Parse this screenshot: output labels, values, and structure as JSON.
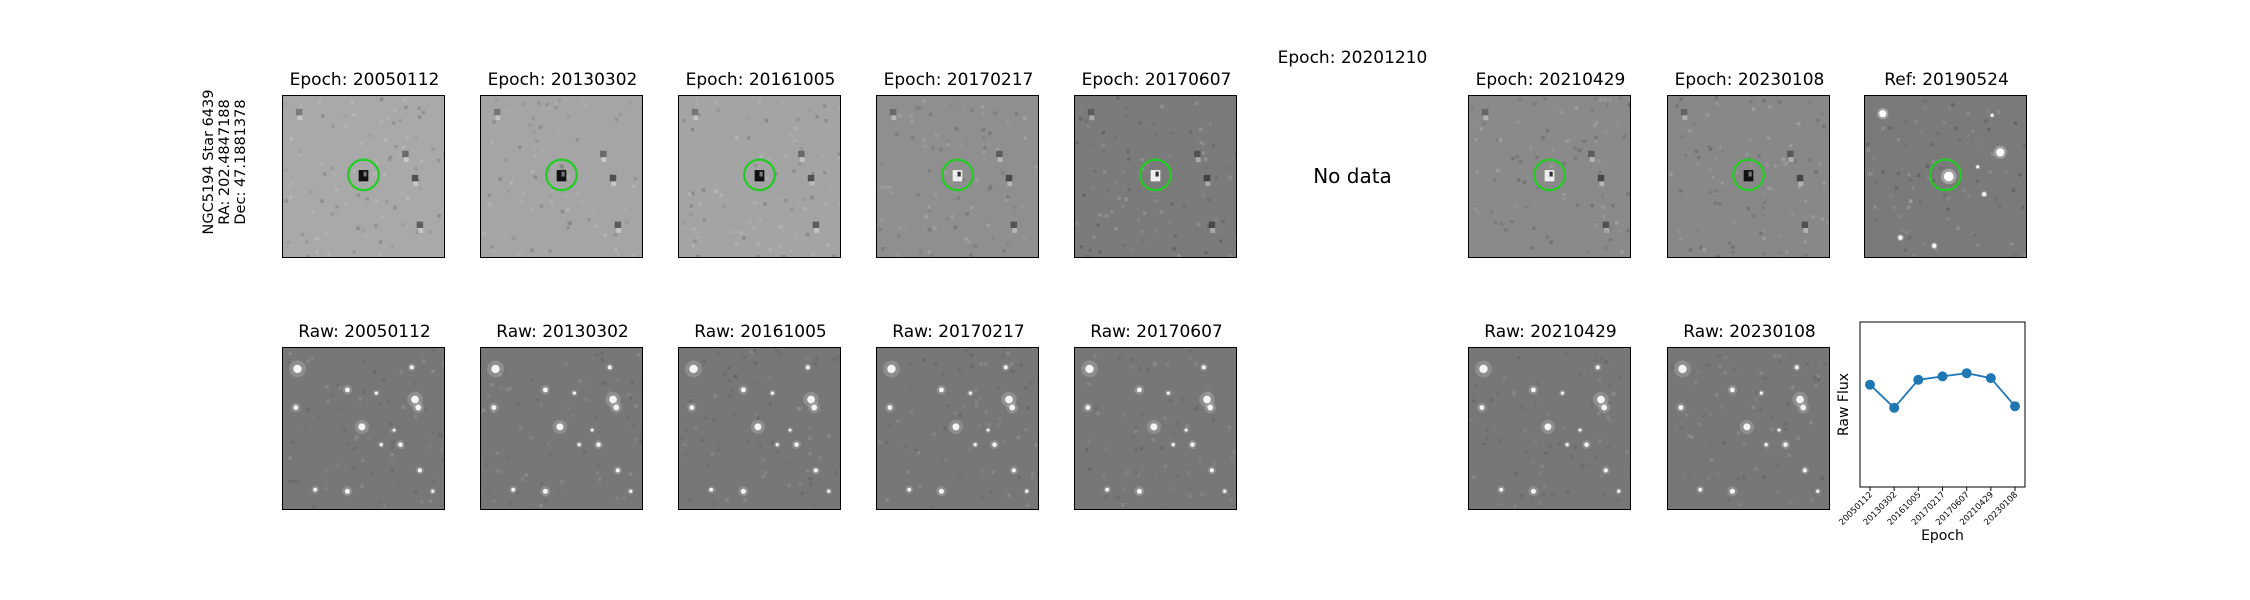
{
  "target": {
    "name": "NGC5194 Star 6439",
    "ra": "RA: 202.4847188",
    "dec": "Dec: 47.1881378"
  },
  "diff_panels": [
    {
      "title": "Epoch: 20050112",
      "tone": "#a9a9a9",
      "marker_colour": "#22cc22"
    },
    {
      "title": "Epoch: 20130302",
      "tone": "#a5a5a5",
      "marker_colour": "#22cc22"
    },
    {
      "title": "Epoch: 20161005",
      "tone": "#a4a4a4",
      "marker_colour": "#22cc22"
    },
    {
      "title": "Epoch: 20170217",
      "tone": "#8f8f8f",
      "marker_colour": "#22cc22"
    },
    {
      "title": "Epoch: 20170607",
      "tone": "#7b7b7b",
      "marker_colour": "#22cc22"
    },
    {
      "title": "Epoch: 20201210",
      "no_data": "No data"
    },
    {
      "title": "Epoch: 20210429",
      "tone": "#8a8a8a",
      "marker_colour": "#22cc22"
    },
    {
      "title": "Epoch: 20230108",
      "tone": "#888888",
      "marker_colour": "#22cc22"
    },
    {
      "title": "Ref: 20190524",
      "tone": "#7a7a7a",
      "marker_colour": "#22cc22"
    }
  ],
  "raw_panels": [
    {
      "title": "Raw: 20050112"
    },
    {
      "title": "Raw: 20130302"
    },
    {
      "title": "Raw: 20161005"
    },
    {
      "title": "Raw: 20170217"
    },
    {
      "title": "Raw: 20170607"
    },
    {
      "title": "Raw: 20210429"
    },
    {
      "title": "Raw: 20230108"
    }
  ],
  "chart_data": {
    "type": "line",
    "xlabel": "Epoch",
    "ylabel": "Raw Flux",
    "categories": [
      "20050112",
      "20130302",
      "20161005",
      "20170217",
      "20170607",
      "20210429",
      "20230108"
    ],
    "values": [
      0.62,
      0.48,
      0.65,
      0.67,
      0.69,
      0.66,
      0.49
    ],
    "ylim": [
      0,
      1
    ],
    "line_colour": "#1f77b4",
    "grid": false
  }
}
